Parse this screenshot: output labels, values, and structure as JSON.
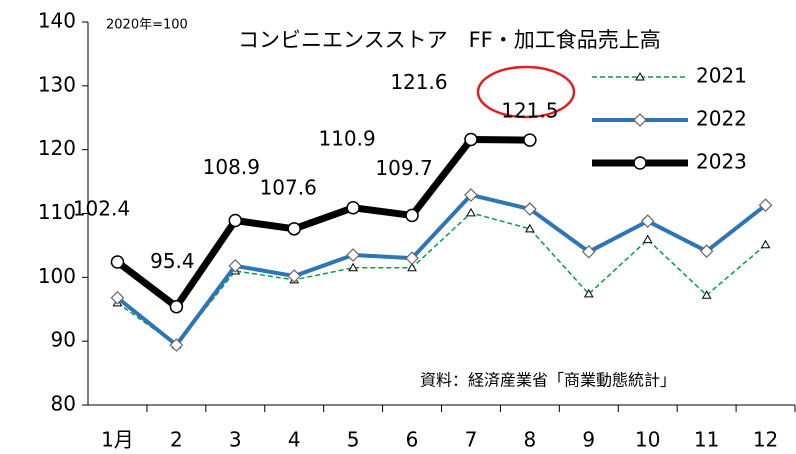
{
  "chart_data": {
    "type": "line",
    "title": "コンビニエンスストア　FF・加工食品売上高",
    "subtitle": "2020年=100",
    "annotation": "資料：経済産業省「商業動態統計」",
    "categories": [
      "1月",
      "2",
      "3",
      "4",
      "5",
      "6",
      "7",
      "8",
      "9",
      "10",
      "11",
      "12"
    ],
    "series": [
      {
        "name": "2021",
        "color": "#00a040",
        "values": [
          96.0,
          89.4,
          101.0,
          99.6,
          101.5,
          101.5,
          110.1,
          107.6,
          97.4,
          105.9,
          97.2,
          105.1
        ]
      },
      {
        "name": "2022",
        "color": "#2e75b6",
        "values": [
          96.8,
          89.4,
          101.8,
          100.2,
          103.5,
          103.0,
          112.9,
          110.7,
          104.0,
          108.8,
          104.1,
          111.3
        ]
      },
      {
        "name": "2023",
        "color": "#000000",
        "values": [
          102.4,
          95.4,
          108.9,
          107.6,
          110.9,
          109.7,
          121.6,
          121.5,
          null,
          null,
          null,
          null
        ]
      }
    ],
    "ylim": [
      80,
      140
    ],
    "yticks": [
      80,
      90,
      100,
      110,
      120,
      130,
      140
    ],
    "grid": false
  }
}
